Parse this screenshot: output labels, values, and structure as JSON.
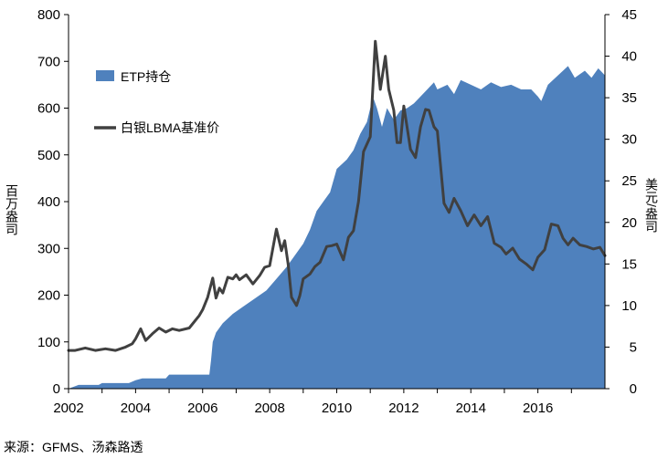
{
  "chart_data": {
    "type": "area+line",
    "title": "",
    "xlabel": "",
    "x_ticks": [
      "2002",
      "2004",
      "2006",
      "2008",
      "2010",
      "2012",
      "2014",
      "2016"
    ],
    "xlim": [
      2002,
      2018
    ],
    "y_left": {
      "label": "百万盎司",
      "ticks": [
        0,
        100,
        200,
        300,
        400,
        500,
        600,
        700,
        800
      ],
      "ylim": [
        0,
        800
      ]
    },
    "y_right": {
      "label": "美元/盎司",
      "ticks": [
        0,
        5,
        10,
        15,
        20,
        25,
        30,
        35,
        40,
        45
      ],
      "ylim": [
        0,
        45
      ]
    },
    "legend": {
      "position": "upper-left-inside"
    },
    "grid": false,
    "series": [
      {
        "name": "ETP持仓",
        "type": "area",
        "axis": "left",
        "color": "#4F81BD",
        "x": [
          2002.0,
          2002.3,
          2002.9,
          2003.0,
          2003.8,
          2004.0,
          2004.2,
          2004.9,
          2005.0,
          2005.9,
          2006.0,
          2006.2,
          2006.25,
          2006.3,
          2006.4,
          2006.6,
          2006.9,
          2007.2,
          2007.5,
          2007.9,
          2008.2,
          2008.5,
          2008.8,
          2009.0,
          2009.2,
          2009.4,
          2009.6,
          2009.8,
          2010.0,
          2010.3,
          2010.5,
          2010.7,
          2010.9,
          2011.0,
          2011.1,
          2011.2,
          2011.35,
          2011.5,
          2011.7,
          2011.9,
          2012.1,
          2012.3,
          2012.5,
          2012.7,
          2012.9,
          2013.0,
          2013.3,
          2013.5,
          2013.7,
          2014.0,
          2014.3,
          2014.6,
          2014.9,
          2015.2,
          2015.5,
          2015.8,
          2016.0,
          2016.1,
          2016.3,
          2016.6,
          2016.9,
          2017.1,
          2017.4,
          2017.6,
          2017.8,
          2018.0
        ],
        "values": [
          0,
          8,
          8,
          12,
          12,
          18,
          22,
          22,
          30,
          30,
          30,
          30,
          60,
          100,
          120,
          140,
          160,
          175,
          190,
          210,
          235,
          260,
          290,
          310,
          340,
          380,
          400,
          420,
          470,
          490,
          510,
          545,
          570,
          600,
          620,
          600,
          560,
          600,
          575,
          595,
          600,
          610,
          625,
          640,
          655,
          640,
          650,
          630,
          660,
          650,
          640,
          655,
          645,
          650,
          640,
          640,
          625,
          615,
          650,
          670,
          690,
          665,
          680,
          665,
          685,
          670
        ]
      },
      {
        "name": "白银LBMA基准价",
        "type": "line",
        "axis": "right",
        "color": "#404040",
        "x": [
          2002.0,
          2002.2,
          2002.5,
          2002.8,
          2003.1,
          2003.4,
          2003.7,
          2003.9,
          2004.0,
          2004.15,
          2004.3,
          2004.5,
          2004.7,
          2004.9,
          2005.1,
          2005.3,
          2005.6,
          2005.9,
          2006.0,
          2006.15,
          2006.3,
          2006.4,
          2006.5,
          2006.6,
          2006.75,
          2006.9,
          2007.0,
          2007.1,
          2007.3,
          2007.5,
          2007.7,
          2007.85,
          2008.0,
          2008.2,
          2008.35,
          2008.45,
          2008.55,
          2008.65,
          2008.8,
          2008.9,
          2009.0,
          2009.2,
          2009.35,
          2009.5,
          2009.7,
          2009.85,
          2010.0,
          2010.2,
          2010.35,
          2010.5,
          2010.65,
          2010.8,
          2011.0,
          2011.15,
          2011.3,
          2011.45,
          2011.55,
          2011.7,
          2011.8,
          2011.9,
          2012.0,
          2012.2,
          2012.35,
          2012.5,
          2012.65,
          2012.75,
          2012.9,
          2013.0,
          2013.2,
          2013.35,
          2013.5,
          2013.7,
          2013.9,
          2014.1,
          2014.3,
          2014.5,
          2014.7,
          2014.9,
          2015.05,
          2015.25,
          2015.45,
          2015.65,
          2015.85,
          2016.0,
          2016.2,
          2016.4,
          2016.6,
          2016.75,
          2016.9,
          2017.05,
          2017.25,
          2017.45,
          2017.65,
          2017.85,
          2018.0
        ],
        "values": [
          4.6,
          4.6,
          4.9,
          4.6,
          4.8,
          4.6,
          5.0,
          5.4,
          6.0,
          7.2,
          5.8,
          6.6,
          7.3,
          6.8,
          7.2,
          7.0,
          7.3,
          8.8,
          9.5,
          11.0,
          13.3,
          10.9,
          12.1,
          11.5,
          13.4,
          13.2,
          13.7,
          13.1,
          13.7,
          12.6,
          13.6,
          14.6,
          14.8,
          19.2,
          16.6,
          17.8,
          15.0,
          11.0,
          10.0,
          11.2,
          13.2,
          13.8,
          14.7,
          15.2,
          17.1,
          17.2,
          17.4,
          15.5,
          18.2,
          19.0,
          22.5,
          28.5,
          30.3,
          41.8,
          36.0,
          40.0,
          36.0,
          33.5,
          29.6,
          29.6,
          34.0,
          28.8,
          27.8,
          31.5,
          33.6,
          33.5,
          31.5,
          31.0,
          22.3,
          21.2,
          22.9,
          21.4,
          19.6,
          20.9,
          19.6,
          20.7,
          17.5,
          17.0,
          16.2,
          16.9,
          15.6,
          15.0,
          14.3,
          15.8,
          16.7,
          19.8,
          19.6,
          18.1,
          17.3,
          18.1,
          17.3,
          17.1,
          16.8,
          17.0,
          16.0
        ]
      }
    ]
  },
  "source": "来源：GFMS、汤森路透"
}
